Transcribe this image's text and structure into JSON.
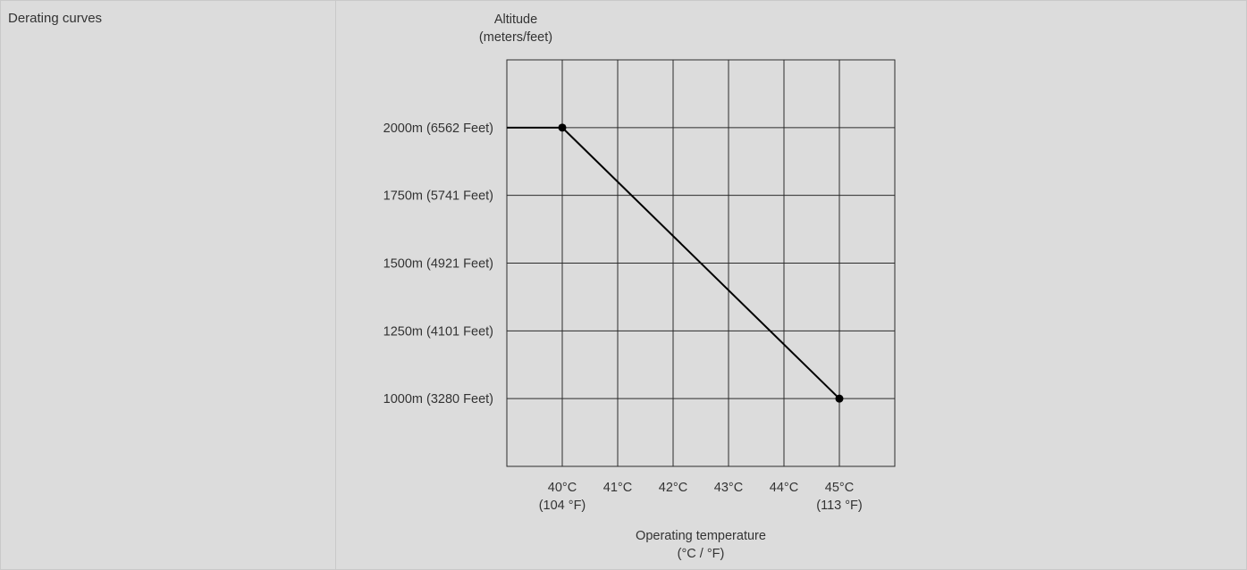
{
  "row": {
    "label": "Derating curves"
  },
  "chart_data": {
    "type": "line",
    "ylabel": [
      "Altitude",
      "(meters/feet)"
    ],
    "xlabel": [
      "Operating temperature",
      "(°C / °F)"
    ],
    "xlim": [
      39,
      46
    ],
    "ylim": [
      750,
      2250
    ],
    "x_ticks": [
      {
        "value": 40,
        "label": "40°C",
        "sub": "(104 °F)"
      },
      {
        "value": 41,
        "label": "41°C",
        "sub": ""
      },
      {
        "value": 42,
        "label": "42°C",
        "sub": ""
      },
      {
        "value": 43,
        "label": "43°C",
        "sub": ""
      },
      {
        "value": 44,
        "label": "44°C",
        "sub": ""
      },
      {
        "value": 45,
        "label": "45°C",
        "sub": "(113 °F)"
      }
    ],
    "y_ticks": [
      {
        "value": 2000,
        "label": "2000m (6562 Feet)"
      },
      {
        "value": 1750,
        "label": "1750m (5741 Feet)"
      },
      {
        "value": 1500,
        "label": "1500m (4921 Feet)"
      },
      {
        "value": 1250,
        "label": "1250m (4101 Feet)"
      },
      {
        "value": 1000,
        "label": "1000m (3280 Feet)"
      }
    ],
    "grid": true,
    "series": [
      {
        "points": [
          {
            "x": 39,
            "y": 2000,
            "marker": false
          },
          {
            "x": 40,
            "y": 2000,
            "marker": true
          },
          {
            "x": 45,
            "y": 1000,
            "marker": true
          }
        ]
      }
    ],
    "colors": {
      "line": "#000000",
      "grid": "#2b2b2b",
      "text": "#333333"
    }
  }
}
